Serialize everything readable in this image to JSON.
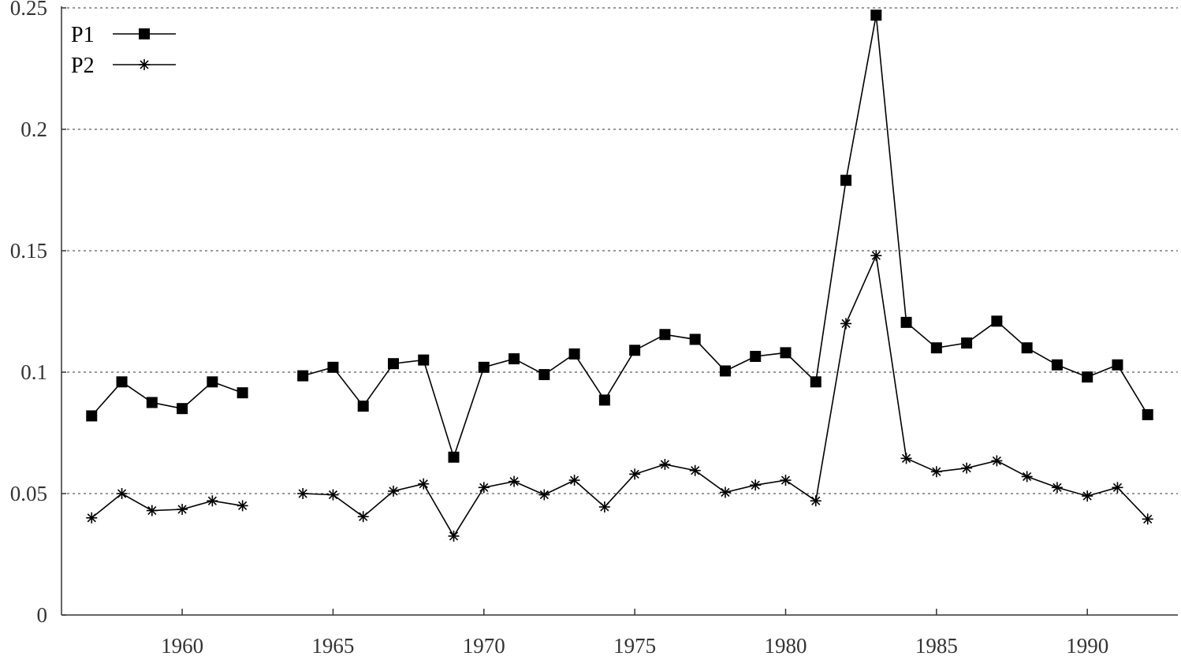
{
  "chart_data": {
    "type": "line",
    "title": "",
    "xlabel": "",
    "ylabel": "",
    "xlim": [
      1956,
      1993
    ],
    "ylim": [
      0,
      0.25
    ],
    "xticks": [
      1960,
      1965,
      1970,
      1975,
      1980,
      1985,
      1990
    ],
    "yticks": [
      0,
      0.05,
      0.1,
      0.15,
      0.2,
      0.25
    ],
    "ytick_labels": [
      "0",
      "0.05",
      "0.1",
      "0.15",
      "0.2",
      "0.25"
    ],
    "grid": "horizontal dashed",
    "legend_position": "top-left",
    "x": [
      1957,
      1958,
      1959,
      1960,
      1961,
      1962,
      1963,
      1964,
      1965,
      1966,
      1967,
      1968,
      1969,
      1970,
      1971,
      1972,
      1973,
      1974,
      1975,
      1976,
      1977,
      1978,
      1979,
      1980,
      1981,
      1982,
      1983,
      1984,
      1985,
      1986,
      1987,
      1988,
      1989,
      1990,
      1991,
      1992
    ],
    "series": [
      {
        "name": "P1",
        "marker": "filled-square",
        "color": "#000000",
        "values": [
          0.082,
          0.096,
          0.0875,
          0.085,
          0.096,
          0.0915,
          null,
          0.0985,
          0.102,
          0.086,
          0.1035,
          0.105,
          0.065,
          0.102,
          0.1055,
          0.099,
          0.1075,
          0.0885,
          0.109,
          0.1155,
          0.1135,
          0.1005,
          0.1065,
          0.108,
          0.096,
          0.179,
          0.247,
          0.1205,
          0.11,
          0.112,
          0.121,
          0.11,
          0.103,
          0.098,
          0.103,
          0.0825
        ]
      },
      {
        "name": "P2",
        "marker": "asterisk",
        "color": "#000000",
        "values": [
          0.04,
          0.05,
          0.043,
          0.0435,
          0.047,
          0.045,
          null,
          0.05,
          0.0495,
          0.0405,
          0.051,
          0.054,
          0.0325,
          0.0525,
          0.055,
          0.0495,
          0.0555,
          0.0445,
          0.058,
          0.062,
          0.0595,
          0.0505,
          0.0535,
          0.0555,
          0.047,
          0.12,
          0.148,
          0.0645,
          0.059,
          0.0605,
          0.0635,
          0.057,
          0.0525,
          0.049,
          0.0525,
          0.0395
        ]
      }
    ]
  }
}
